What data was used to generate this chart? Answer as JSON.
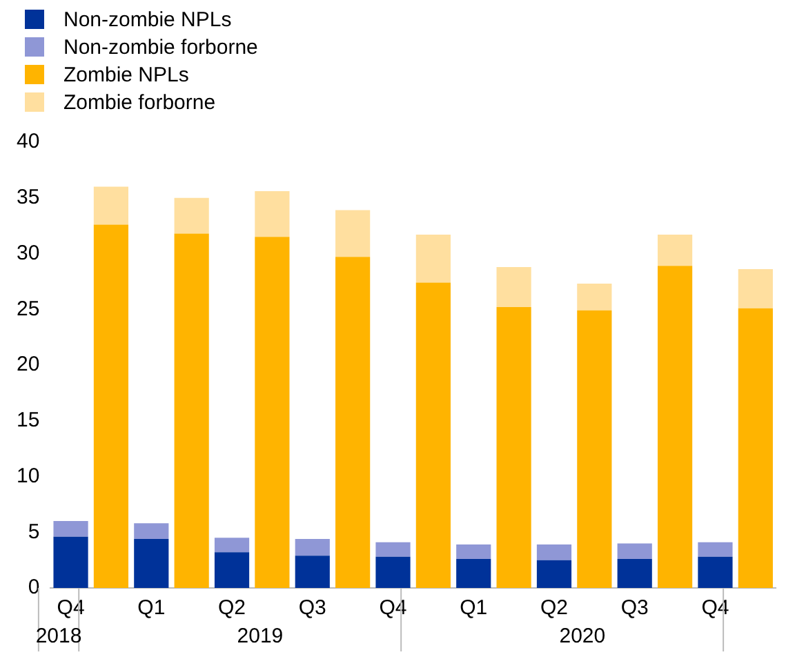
{
  "chart_data": {
    "type": "bar",
    "stacked": true,
    "legend": "top left",
    "grid": false,
    "categories": [
      "Q4",
      null,
      "Q1",
      null,
      "Q2",
      null,
      "Q3",
      null,
      "Q4",
      null,
      "Q1",
      null,
      "Q2",
      null,
      "Q3",
      null,
      "Q4",
      null
    ],
    "ylim": [
      0,
      40
    ],
    "yticks": [
      0,
      5,
      10,
      15,
      20,
      25,
      30,
      35,
      40
    ],
    "annotations": [
      "2018",
      "2019",
      "2020"
    ],
    "series": [
      {
        "name": "Non-zombie NPLs",
        "color": "#003299",
        "values": [
          4.6,
          null,
          4.4,
          null,
          3.2,
          null,
          2.9,
          null,
          2.8,
          null,
          2.6,
          null,
          2.5,
          null,
          2.6,
          null,
          2.8,
          null
        ]
      },
      {
        "name": "Non-zombie forborne",
        "color": "#8f97d6",
        "values": [
          1.4,
          null,
          1.4,
          null,
          1.3,
          null,
          1.5,
          null,
          1.3,
          null,
          1.3,
          null,
          1.4,
          null,
          1.4,
          null,
          1.3,
          null
        ]
      },
      {
        "name": "Zombie NPLs",
        "color": "#ffb400",
        "values": [
          null,
          32.6,
          null,
          31.8,
          null,
          31.5,
          null,
          29.7,
          null,
          27.4,
          null,
          25.2,
          null,
          24.9,
          null,
          28.9,
          null,
          25.1
        ]
      },
      {
        "name": "Zombie forborne",
        "color": "#ffdf9f",
        "values": [
          null,
          3.4,
          null,
          3.2,
          null,
          4.1,
          null,
          4.2,
          null,
          4.3,
          null,
          3.6,
          null,
          2.4,
          null,
          2.8,
          null,
          3.5
        ]
      }
    ]
  }
}
